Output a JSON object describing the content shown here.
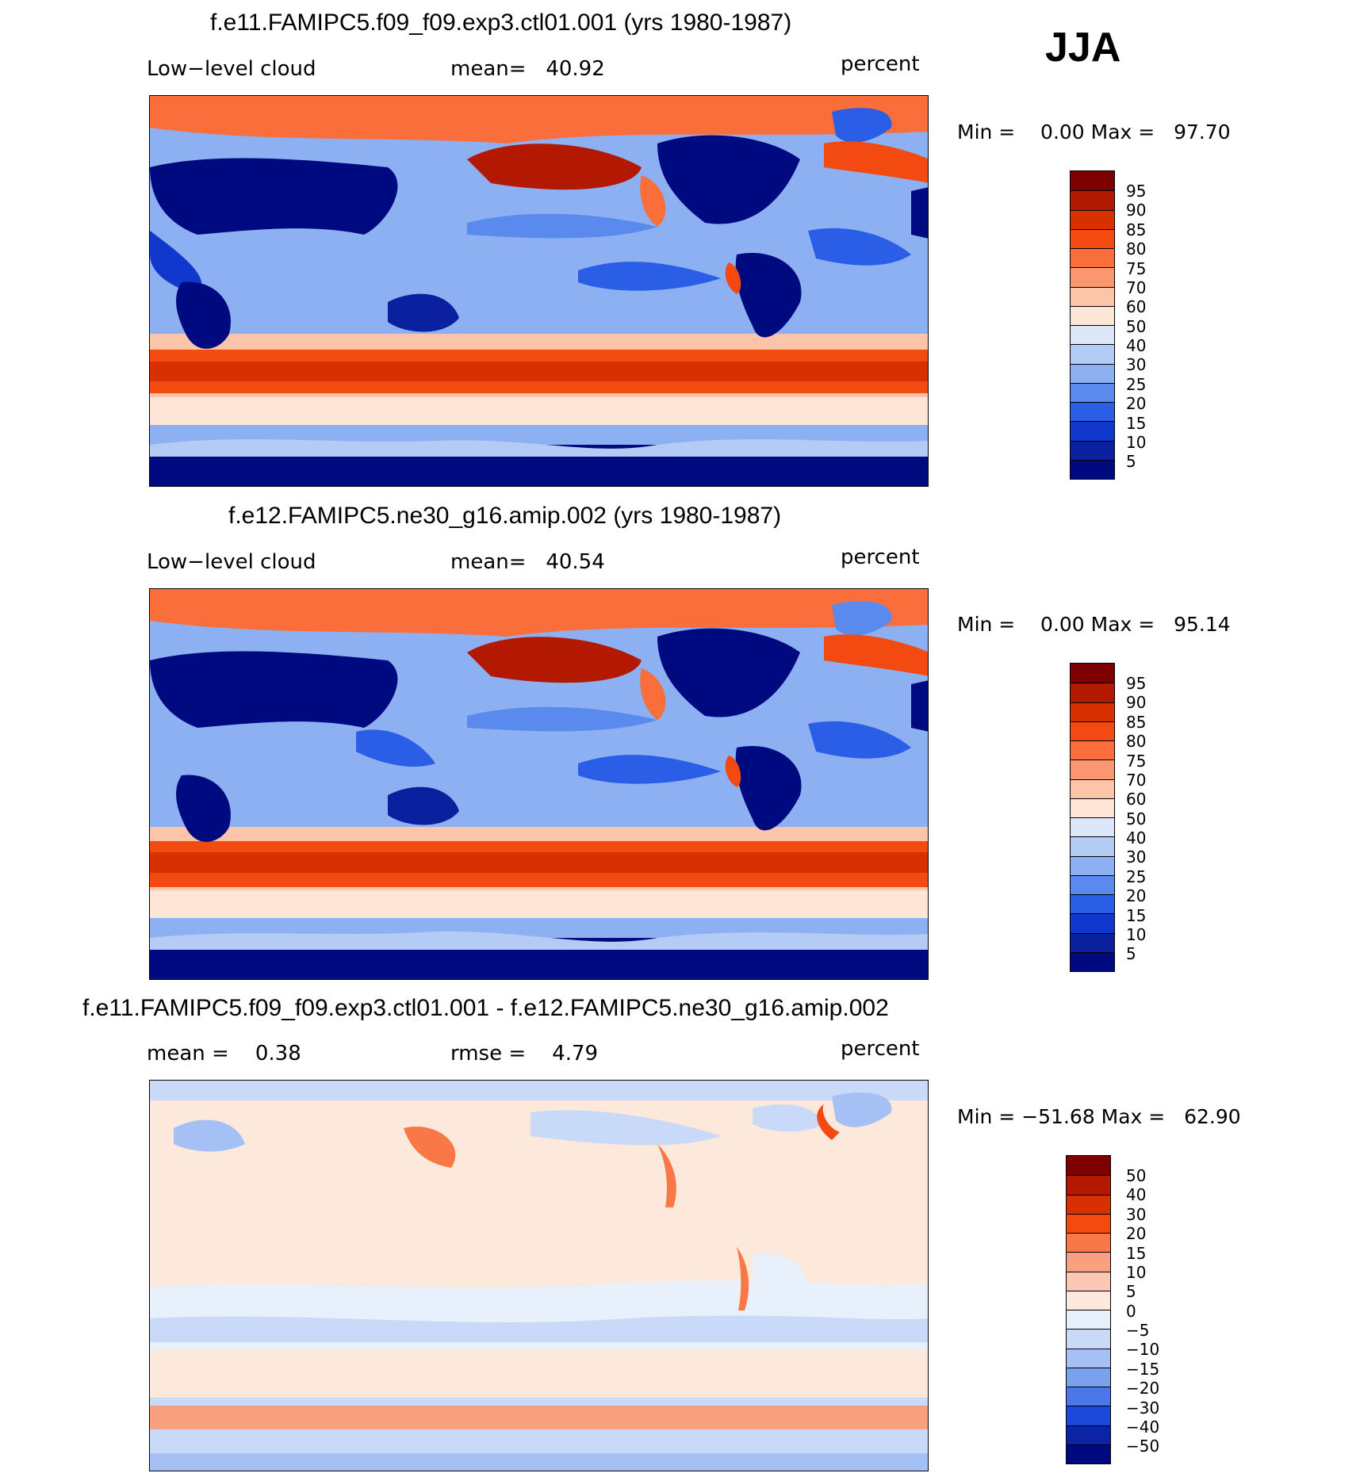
{
  "season": "JJA",
  "panels": [
    {
      "title": "f.e11.FAMIPC5.f09_f09.exp3.ctl01.001 (yrs 1980-1987)",
      "variable": "Low−level cloud",
      "mean_text": "mean=   40.92",
      "units": "percent",
      "minmax_text": "Min =    0.00 Max =   97.70",
      "colorbar_labels": [
        "95",
        "90",
        "85",
        "80",
        "75",
        "70",
        "60",
        "50",
        "40",
        "30",
        "25",
        "20",
        "15",
        "10",
        "5"
      ]
    },
    {
      "title": "f.e12.FAMIPC5.ne30_g16.amip.002 (yrs 1980-1987)",
      "variable": "Low−level cloud",
      "mean_text": "mean=   40.54",
      "units": "percent",
      "minmax_text": "Min =    0.00 Max =   95.14",
      "colorbar_labels": [
        "95",
        "90",
        "85",
        "80",
        "75",
        "70",
        "60",
        "50",
        "40",
        "30",
        "25",
        "20",
        "15",
        "10",
        "5"
      ]
    },
    {
      "title": "f.e11.FAMIPC5.f09_f09.exp3.ctl01.001 - f.e12.FAMIPC5.ne30_g16.amip.002",
      "mean_text": "mean =    0.38",
      "rmse_text": "rmse =    4.79",
      "units": "percent",
      "minmax_text": "Min = −51.68 Max =   62.90",
      "colorbar_labels": [
        "50",
        "40",
        "30",
        "20",
        "15",
        "10",
        "5",
        "0",
        "−5",
        "−10",
        "−15",
        "−20",
        "−30",
        "−40",
        "−50"
      ]
    }
  ],
  "colors": {
    "abs_scale": [
      "#7f0000",
      "#b31800",
      "#d93000",
      "#f24a10",
      "#fa6e3c",
      "#fa9670",
      "#fcc4a8",
      "#fde6d6",
      "#dce8fa",
      "#b4ccf5",
      "#8cb0f2",
      "#5a8aee",
      "#2a5ee6",
      "#1038cc",
      "#0a209e",
      "#000a80"
    ],
    "diff_scale": [
      "#7f0000",
      "#b31800",
      "#d93000",
      "#f24a10",
      "#fa7848",
      "#fa9f80",
      "#fcc8b4",
      "#fde8dc",
      "#e8f0fc",
      "#c8daf8",
      "#a4c0f4",
      "#7aa0f0",
      "#4a78ea",
      "#1a48d8",
      "#0a24a8",
      "#000a80"
    ]
  }
}
